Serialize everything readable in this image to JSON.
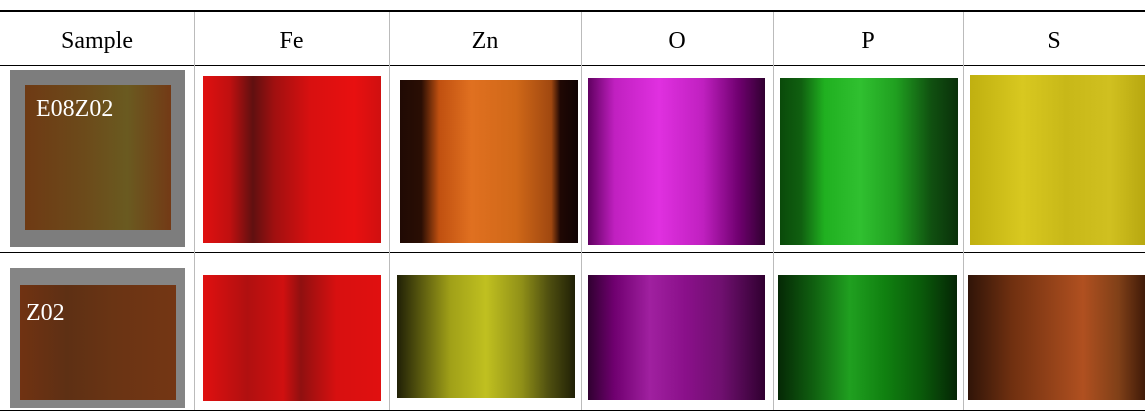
{
  "header": {
    "columns": [
      "Sample",
      "Fe",
      "Zn",
      "O",
      "P",
      "S"
    ]
  },
  "rows": [
    {
      "sample": "E08Z02"
    },
    {
      "sample": "Z02"
    }
  ]
}
